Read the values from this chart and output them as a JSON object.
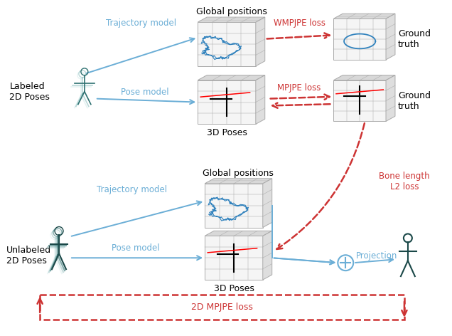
{
  "bg_color": "#ffffff",
  "arrow_blue": "#6baed6",
  "arrow_red": "#cd3333",
  "text_black": "#000000",
  "text_blue": "#6baed6",
  "text_red": "#cd3333",
  "trajectory_blue": "#3182bd",
  "box_line": "#aaaaaa",
  "labels": {
    "labeled_2d": "Labeled\n2D Poses",
    "unlabeled_2d": "Unlabeled\n2D Poses",
    "trajectory_model": "Trajectory model",
    "pose_model": "Pose model",
    "wmpjpe_loss": "WMPJPE loss",
    "mpjpe_loss": "MPJPE loss",
    "bone_length": "Bone length\nL2 loss",
    "ground_truth": "Ground\ntruth",
    "global_positions_top": "Global positions",
    "global_positions_bottom": "Global positions",
    "3d_poses_top": "3D Poses",
    "3d_poses_bottom": "3D Poses",
    "projection": "Projection",
    "2d_mpjpe_loss": "2D MPJPE loss"
  }
}
